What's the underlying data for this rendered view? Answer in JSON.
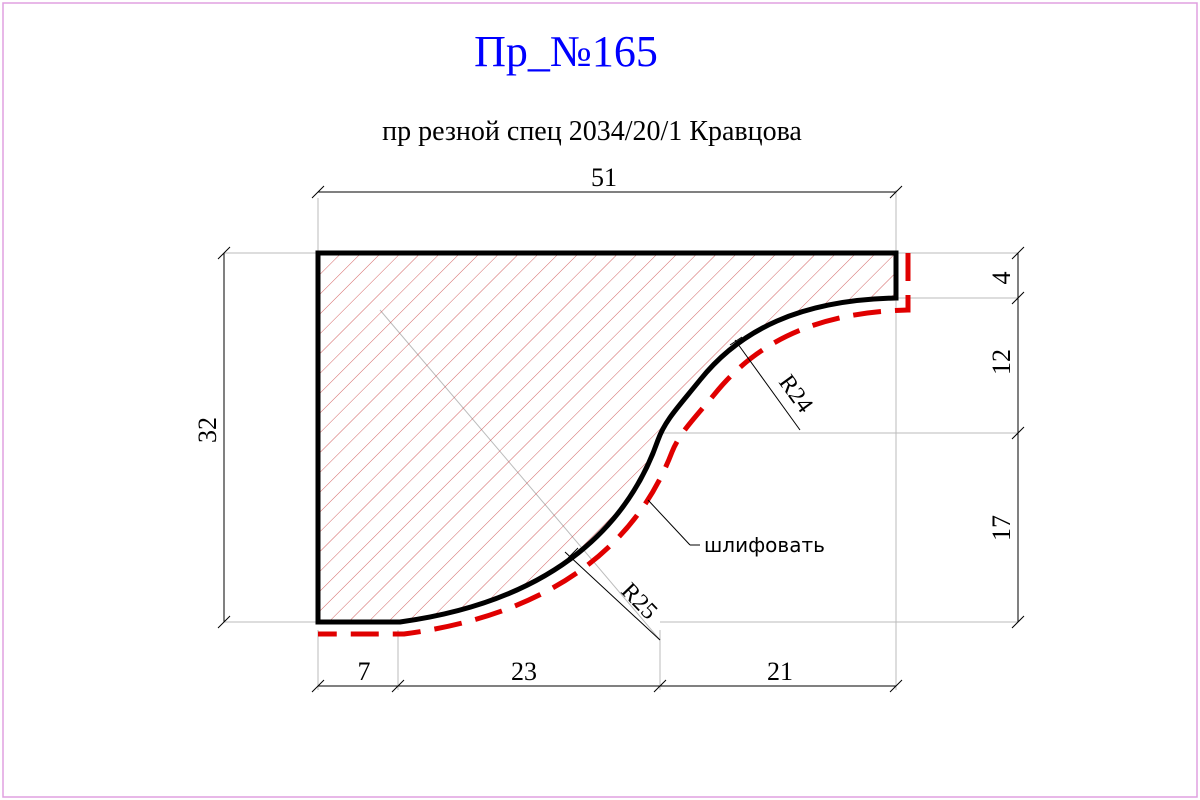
{
  "title": "Пр_№165",
  "subtitle": "пр резной спец 2034/20/1  Кравцова",
  "dimensions": {
    "width_total": "51",
    "height_total": "32",
    "right_top": "4",
    "right_middle": "12",
    "right_bottom": "17",
    "bottom_left": "7",
    "bottom_middle": "23",
    "bottom_right": "21"
  },
  "radii": {
    "upper": "R24",
    "lower": "R25"
  },
  "note": "шлифовать",
  "colors": {
    "title": "#0000ff",
    "profile": "#000000",
    "hatch": "#c83c3c",
    "sanding": "#e00000",
    "border": "#e0a0e0",
    "dimension": "#000000",
    "guide": "#bbbbbb"
  }
}
